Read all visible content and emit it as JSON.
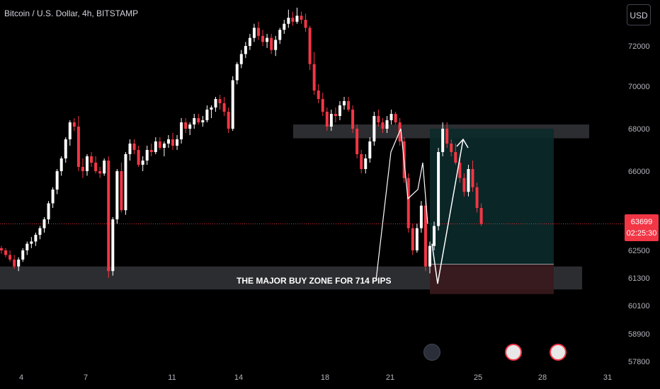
{
  "header": {
    "symbol_title": "Bitcoin / U.S. Dollar, 4h, BITSTAMP"
  },
  "currency_button": "USD",
  "price_tag": {
    "price": "63699",
    "countdown": "02:25:30"
  },
  "annotation": "THE  MAJOR BUY ZONE FOR 714 PIPS",
  "events": [
    {
      "icon": "flash-icon"
    },
    {
      "icon": "us-flag-icon"
    },
    {
      "icon": "us-flag-icon"
    }
  ],
  "colors": {
    "up": "#ffffff",
    "down": "#f23645",
    "zone": "#2e2f33",
    "target": "#0b2a2a",
    "stop": "#3a1a1e",
    "price_line": "#f23645"
  },
  "chart_data": {
    "type": "candlestick",
    "title": "Bitcoin / U.S. Dollar, 4h, BITSTAMP",
    "y_ticks": [
      "72000",
      "70000",
      "68000",
      "66000",
      "64000",
      "62500",
      "61300",
      "60100",
      "58900",
      "57800"
    ],
    "x_ticks": [
      "4",
      "7",
      "11",
      "14",
      "18",
      "21",
      "25",
      "28",
      "31"
    ],
    "ylim": [
      57800,
      73900
    ],
    "current_price": 63699,
    "zones": [
      {
        "name": "resistance",
        "from": 67550,
        "to": 68200
      },
      {
        "name": "buy zone",
        "from": 60800,
        "to": 61800
      }
    ],
    "position": {
      "entry": 61900,
      "target": 68000,
      "stop": 60600
    },
    "projection": [
      62800,
      66600,
      61050,
      67500
    ],
    "candles": [
      [
        62600,
        62700,
        62350,
        62500
      ],
      [
        62500,
        62600,
        62200,
        62300
      ],
      [
        62300,
        62500,
        62000,
        62100
      ],
      [
        62100,
        62300,
        61700,
        61800
      ],
      [
        61800,
        62200,
        61600,
        62100
      ],
      [
        62100,
        62600,
        62000,
        62500
      ],
      [
        62500,
        62900,
        62300,
        62800
      ],
      [
        62800,
        63100,
        62600,
        62900
      ],
      [
        62900,
        63300,
        62700,
        63200
      ],
      [
        63200,
        63600,
        63000,
        63500
      ],
      [
        63500,
        64000,
        63300,
        63900
      ],
      [
        63900,
        64700,
        63700,
        64600
      ],
      [
        64600,
        65300,
        64400,
        65200
      ],
      [
        65200,
        66100,
        65000,
        66000
      ],
      [
        66000,
        66700,
        65800,
        66600
      ],
      [
        66600,
        67600,
        66400,
        67500
      ],
      [
        67500,
        68400,
        67200,
        68300
      ],
      [
        68300,
        68500,
        67900,
        68100
      ],
      [
        68100,
        68600,
        66000,
        66200
      ],
      [
        66200,
        66600,
        65700,
        66000
      ],
      [
        66000,
        66800,
        65800,
        66700
      ],
      [
        66700,
        66900,
        66200,
        66400
      ],
      [
        66400,
        66700,
        65900,
        66000
      ],
      [
        66000,
        66200,
        65700,
        65900
      ],
      [
        65900,
        66600,
        65800,
        66500
      ],
      [
        66500,
        66700,
        61300,
        61600
      ],
      [
        61600,
        64000,
        61400,
        63900
      ],
      [
        63900,
        66100,
        63700,
        66000
      ],
      [
        66000,
        66400,
        64200,
        64300
      ],
      [
        64300,
        66900,
        64100,
        66800
      ],
      [
        66800,
        67500,
        66500,
        67300
      ],
      [
        67300,
        67500,
        66800,
        67000
      ],
      [
        67000,
        67200,
        66200,
        66300
      ],
      [
        66300,
        66700,
        66000,
        66500
      ],
      [
        66500,
        67200,
        66300,
        67000
      ],
      [
        67000,
        67300,
        66700,
        66900
      ],
      [
        66900,
        67600,
        66800,
        67400
      ],
      [
        67400,
        67600,
        67000,
        67100
      ],
      [
        67100,
        67400,
        66700,
        67300
      ],
      [
        67300,
        67700,
        67100,
        67500
      ],
      [
        67500,
        67800,
        67000,
        67200
      ],
      [
        67200,
        67700,
        67000,
        67500
      ],
      [
        67500,
        68500,
        67300,
        68300
      ],
      [
        68300,
        68500,
        67800,
        68000
      ],
      [
        68000,
        68300,
        67700,
        68200
      ],
      [
        68200,
        68700,
        68000,
        68500
      ],
      [
        68500,
        68700,
        68200,
        68300
      ],
      [
        68300,
        68600,
        68100,
        68400
      ],
      [
        68400,
        69100,
        68300,
        68900
      ],
      [
        68900,
        69100,
        68500,
        69000
      ],
      [
        69000,
        69500,
        68800,
        69400
      ],
      [
        69400,
        69600,
        68900,
        69200
      ],
      [
        69200,
        69500,
        68600,
        68800
      ],
      [
        68800,
        69000,
        67800,
        68000
      ],
      [
        68000,
        70500,
        67900,
        70300
      ],
      [
        70300,
        71200,
        70100,
        71100
      ],
      [
        71100,
        71800,
        70900,
        71600
      ],
      [
        71600,
        72200,
        71400,
        72000
      ],
      [
        72000,
        72600,
        71800,
        72400
      ],
      [
        72400,
        73100,
        72200,
        72900
      ],
      [
        72900,
        73200,
        72300,
        72500
      ],
      [
        72500,
        72800,
        72000,
        72200
      ],
      [
        72200,
        72600,
        71900,
        72400
      ],
      [
        72400,
        72600,
        71600,
        71800
      ],
      [
        71800,
        72500,
        71500,
        72300
      ],
      [
        72300,
        72900,
        72100,
        72800
      ],
      [
        72800,
        73300,
        72600,
        73100
      ],
      [
        73100,
        73800,
        72900,
        73400
      ],
      [
        73400,
        73700,
        73000,
        73200
      ],
      [
        73200,
        73900,
        73100,
        73500
      ],
      [
        73500,
        73700,
        73100,
        73300
      ],
      [
        73300,
        73600,
        72700,
        72900
      ],
      [
        72900,
        73000,
        70800,
        71100
      ],
      [
        71100,
        71700,
        69600,
        69800
      ],
      [
        69800,
        70100,
        69200,
        69400
      ],
      [
        69400,
        69700,
        68600,
        68800
      ],
      [
        68800,
        69000,
        67900,
        68100
      ],
      [
        68100,
        68900,
        67900,
        68700
      ],
      [
        68700,
        69000,
        68300,
        68600
      ],
      [
        68600,
        69300,
        68400,
        69100
      ],
      [
        69100,
        69500,
        68900,
        69300
      ],
      [
        69300,
        69500,
        68800,
        68900
      ],
      [
        68900,
        69100,
        67800,
        68000
      ],
      [
        68000,
        68200,
        66600,
        66800
      ],
      [
        66800,
        67000,
        65900,
        66100
      ],
      [
        66100,
        66800,
        65900,
        66600
      ],
      [
        66600,
        67600,
        66400,
        67400
      ],
      [
        67400,
        68800,
        67200,
        68600
      ],
      [
        68600,
        68900,
        68100,
        68300
      ],
      [
        68300,
        68500,
        67800,
        68000
      ],
      [
        68000,
        68600,
        67800,
        68400
      ],
      [
        68400,
        68900,
        68200,
        68700
      ],
      [
        68700,
        68800,
        68200,
        68300
      ],
      [
        68300,
        68500,
        67200,
        67400
      ],
      [
        67400,
        67600,
        65500,
        65700
      ],
      [
        65700,
        65900,
        63300,
        63500
      ],
      [
        63500,
        63700,
        62300,
        62500
      ],
      [
        62500,
        63700,
        62400,
        63500
      ],
      [
        63500,
        64700,
        63300,
        64500
      ],
      [
        64500,
        64700,
        61600,
        61800
      ],
      [
        61800,
        62900,
        61500,
        62700
      ],
      [
        62700,
        63800,
        62500,
        63600
      ],
      [
        63600,
        67100,
        63400,
        66900
      ],
      [
        66900,
        68300,
        66700,
        68000
      ],
      [
        68000,
        68300,
        67100,
        67300
      ],
      [
        67300,
        67500,
        66700,
        66900
      ],
      [
        66900,
        67300,
        66300,
        66400
      ],
      [
        66400,
        66600,
        65500,
        65700
      ],
      [
        65700,
        65900,
        64900,
        65100
      ],
      [
        65100,
        66300,
        64900,
        66100
      ],
      [
        66100,
        66500,
        65100,
        65300
      ],
      [
        65300,
        65500,
        64200,
        64400
      ],
      [
        64400,
        64600,
        63600,
        63700
      ]
    ]
  }
}
